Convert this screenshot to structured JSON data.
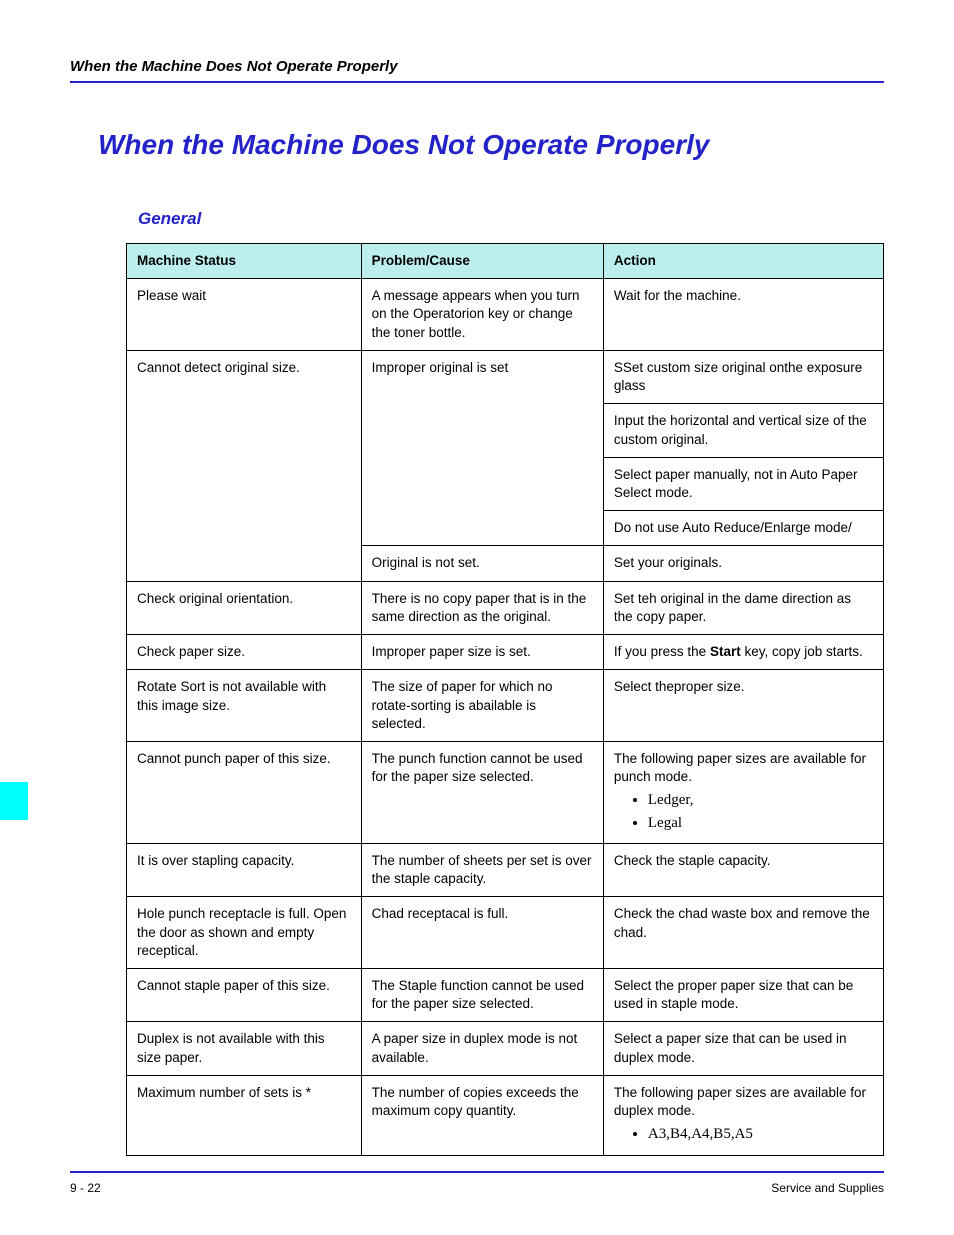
{
  "running_header": "When the Machine Does Not Operate Properly",
  "title": "When the Machine Does Not Operate Properly",
  "subtitle": "General",
  "colors": {
    "rule": "#2323c9",
    "header_bg": "#bdeeee",
    "side_tab": "#00ffff"
  },
  "table": {
    "headers": [
      "Machine Status",
      "Problem/Cause",
      "Action"
    ],
    "col_widths_pct": [
      31,
      32,
      37
    ]
  },
  "rows": {
    "r1_status": "Please wait",
    "r1_cause": "A message appears when you turn on the Operatorion key or change the toner bottle.",
    "r1_action": "Wait for the machine.",
    "r2_status": "Cannot detect original size.",
    "r2_cause": "Improper original is set",
    "r2_action_a": "SSet custom size original onthe exposure glass",
    "r2_action_b": "Input the horizontal and vertical size of the custom original.",
    "r2_action_c": "Select paper manually, not in Auto Paper Select mode.",
    "r2_action_d": "Do not use Auto Reduce/Enlarge mode/",
    "r3_cause": "Original is not set.",
    "r3_action": "Set your originals.",
    "r4_status": "Check original orientation.",
    "r4_cause": "There is no copy paper that is in the same direction as the original.",
    "r4_action": "Set teh original in the dame direction as the copy paper.",
    "r5_status": "Check paper size.",
    "r5_cause": "Improper paper size is set.",
    "r5_action_pre": "If you press the ",
    "r5_action_bold": "Start",
    "r5_action_post": " key, copy job starts.",
    "r6_status": "Rotate Sort is not available with this image size.",
    "r6_cause": "The size of paper for which no rotate-sorting is abailable is selected.",
    "r6_action": "Select theproper size.",
    "r7_status": "Cannot punch paper of this size.",
    "r7_cause": "The punch function cannot be used for the paper size selected.",
    "r7_action_intro": "The following paper sizes are available for punch mode.",
    "r7_action_li1": "Ledger,",
    "r7_action_li2": "Legal",
    "r8_status": "It is over stapling capacity.",
    "r8_cause": "The number of sheets per set is over the staple capacity.",
    "r8_action": "Check the staple capacity.",
    "r9_status": "Hole punch receptacle is full. Open the door as shown and empty receptical.",
    "r9_cause": "Chad receptacal is full.",
    "r9_action": "Check the chad waste box and remove the chad.",
    "r10_status": "Cannot staple paper of this size.",
    "r10_cause": "The Staple function cannot be used for the paper size selected.",
    "r10_action": "Select the proper paper size that can be used in staple mode.",
    "r11_status": "Duplex is not available with this size paper.",
    "r11_cause": "A paper size in duplex mode is not available.",
    "r11_action": "Select a paper size that can be used in duplex mode.",
    "r12_status": "Maximum number of sets is *",
    "r12_cause": "The number of copies exceeds the maximum copy quantity.",
    "r12_action_intro": "The following paper sizes are available for duplex mode.",
    "r12_action_li1": "A3,B4,A4,B5,A5"
  },
  "footer": {
    "left": "9 - 22",
    "right": "Service and Supplies"
  }
}
